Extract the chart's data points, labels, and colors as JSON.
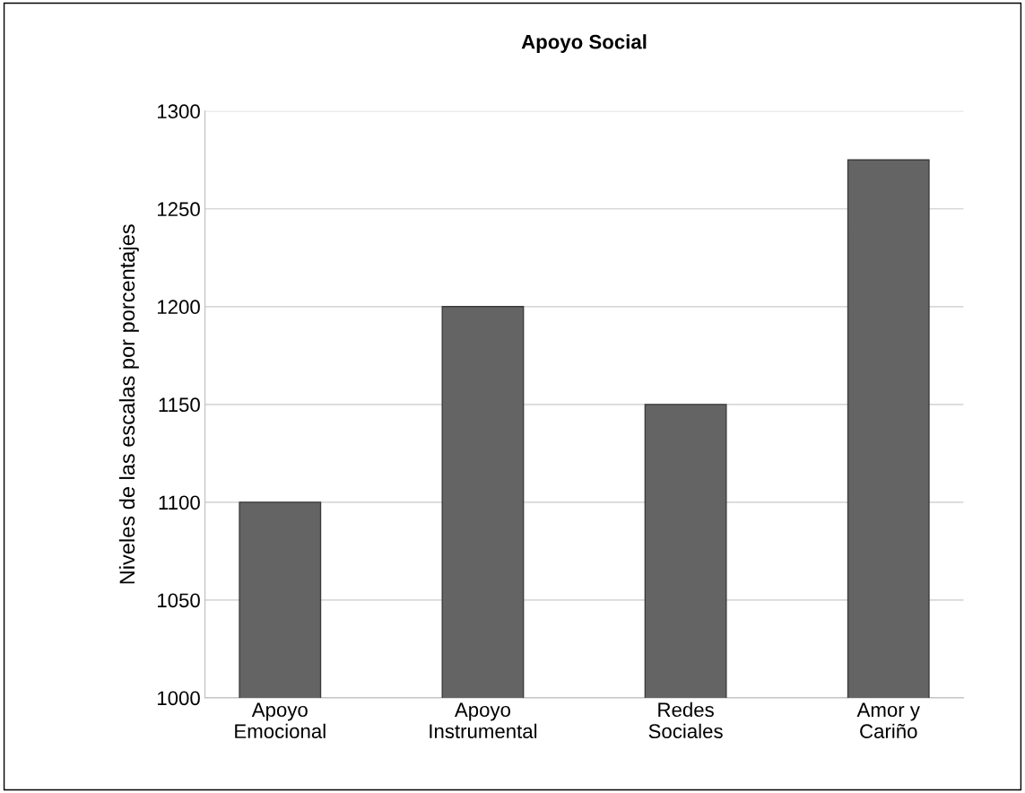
{
  "chart_data": {
    "type": "bar",
    "title": "Apoyo Social",
    "ylabel": "Niveles de las escalas por porcentajes",
    "categories": [
      "Apoyo\nEmocional",
      "Apoyo\nInstrumental",
      "Redes\nSociales",
      "Amor y\nCariño"
    ],
    "values": [
      1100,
      1200,
      1150,
      1275
    ],
    "color": "#646464",
    "ylim": [
      1000,
      1300
    ],
    "yticks": [
      1000,
      1050,
      1100,
      1150,
      1200,
      1250,
      1300
    ],
    "grid": "y",
    "legend": false
  }
}
